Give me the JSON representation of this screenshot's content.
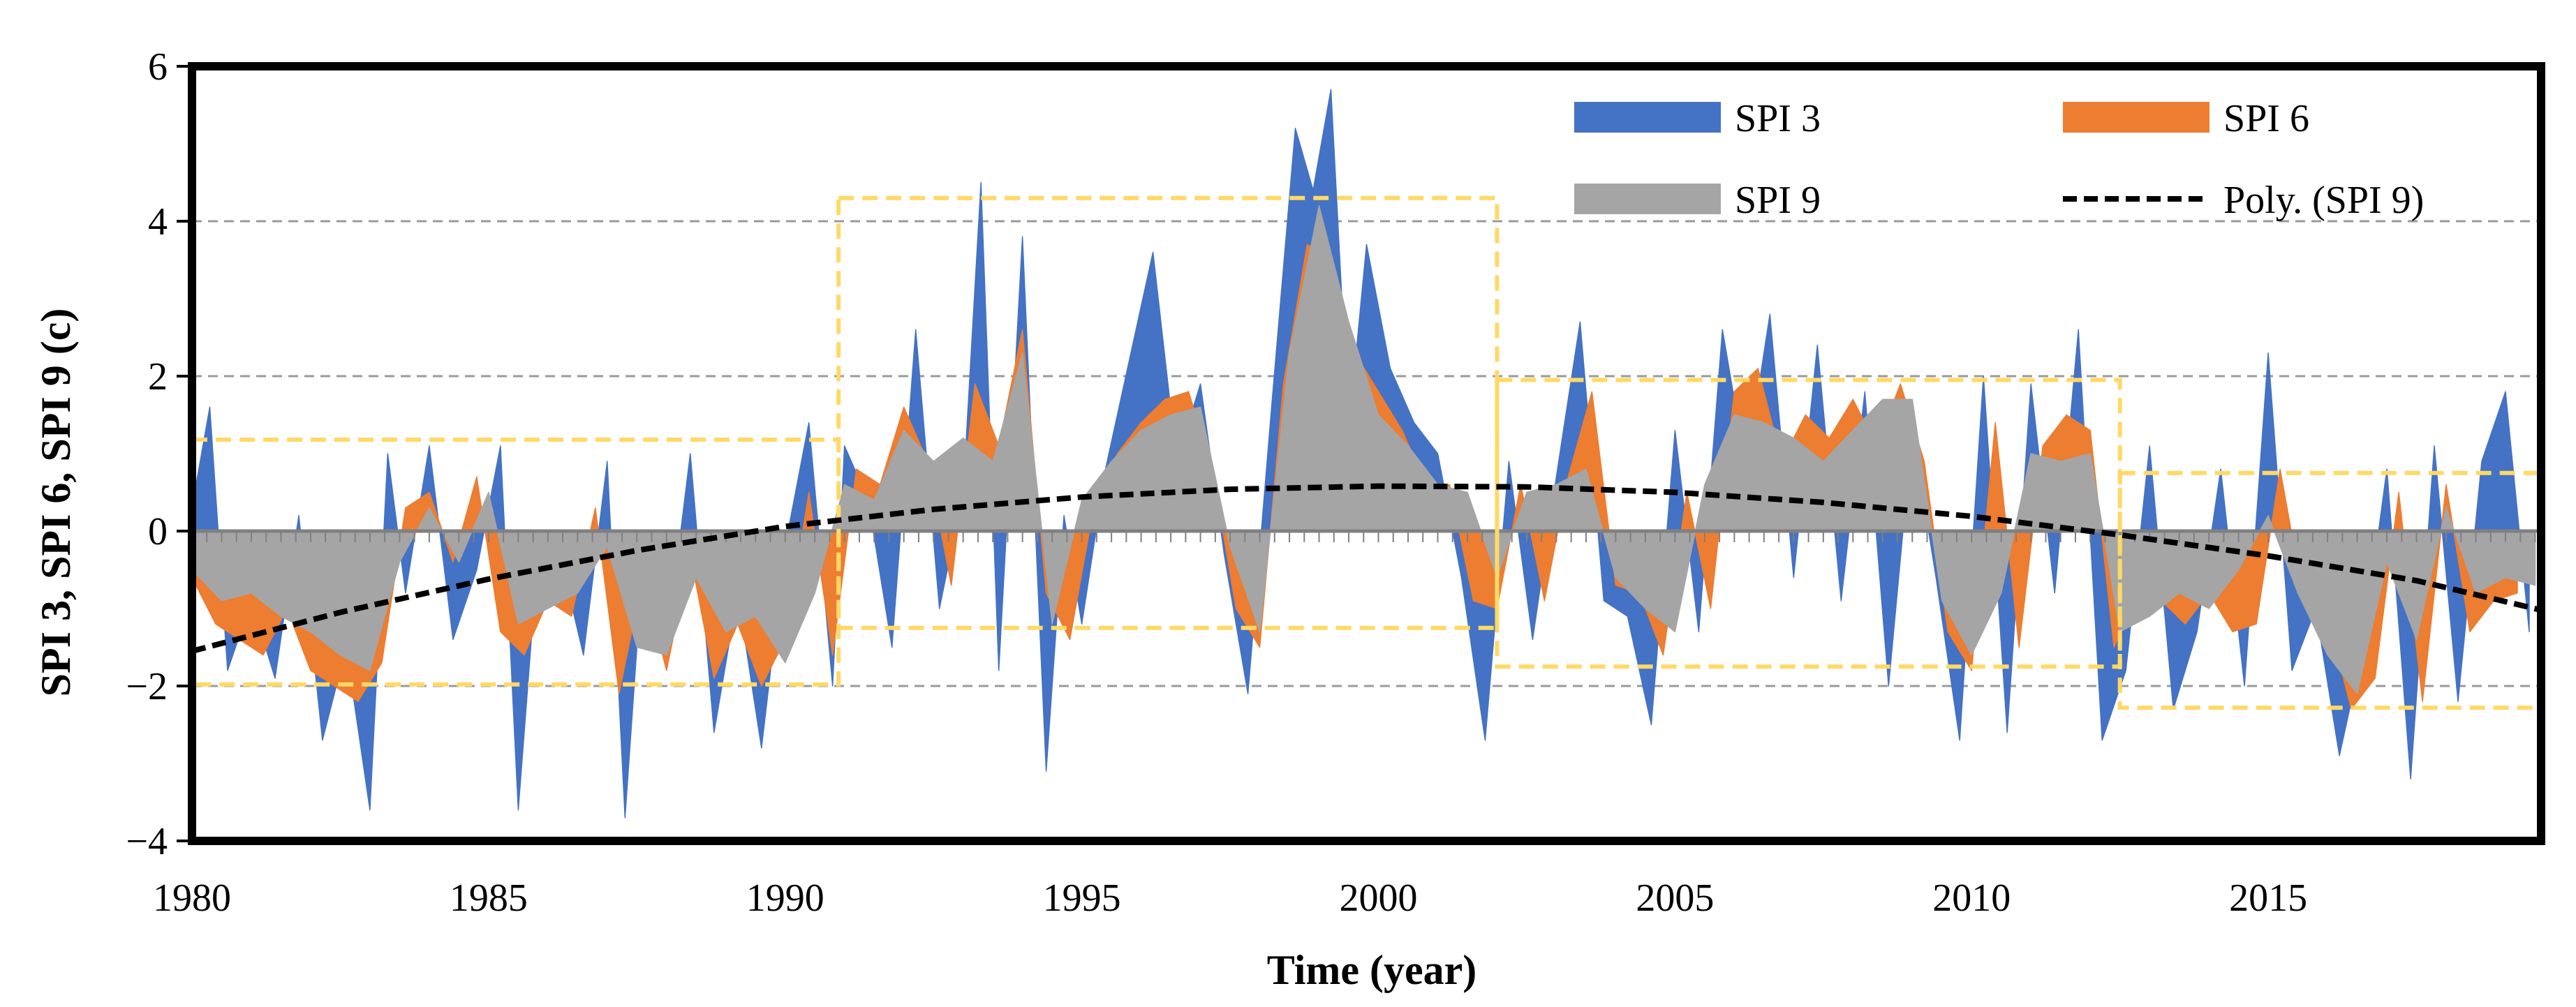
{
  "chart_data": {
    "type": "area",
    "title": "",
    "xlabel": "Time (year)",
    "ylabel": "SPI 3, SPI 6, SPI 9 (c)",
    "xlim": [
      1980,
      2019.6
    ],
    "ylim": [
      -4,
      6
    ],
    "x_ticks": [
      1980,
      1985,
      1990,
      1995,
      2000,
      2005,
      2010,
      2015
    ],
    "x_tick_labels": [
      "1980",
      "1985",
      "1990",
      "1995",
      "2000",
      "2005",
      "2010",
      "2015"
    ],
    "y_ticks": [
      -4,
      -2,
      0,
      2,
      4,
      6
    ],
    "y_tick_labels": [
      "−4",
      "−2",
      "0",
      "2",
      "4",
      "6"
    ],
    "gridlines_y": [
      -2,
      2,
      4
    ],
    "legend": {
      "position": "top-right",
      "entries": [
        {
          "label": "SPI 3",
          "color": "#4472C4",
          "kind": "area"
        },
        {
          "label": "SPI 6",
          "color": "#ED7D31",
          "kind": "area"
        },
        {
          "label": "SPI 9",
          "color": "#A5A5A5",
          "kind": "area"
        },
        {
          "label": "Poly. (SPI 9)",
          "color": "#000000",
          "kind": "dashed-line"
        }
      ]
    },
    "series": [
      {
        "name": "SPI 3",
        "color": "#4472C4",
        "x": [
          1980.0,
          1980.3,
          1980.6,
          1981.0,
          1981.4,
          1981.8,
          1982.2,
          1982.6,
          1983.0,
          1983.3,
          1983.6,
          1984.0,
          1984.4,
          1984.8,
          1985.2,
          1985.5,
          1985.8,
          1986.2,
          1986.6,
          1987.0,
          1987.3,
          1987.6,
          1988.0,
          1988.4,
          1988.8,
          1989.2,
          1989.6,
          1990.0,
          1990.4,
          1990.8,
          1991.0,
          1991.4,
          1991.8,
          1992.2,
          1992.6,
          1993.0,
          1993.3,
          1993.6,
          1994.0,
          1994.4,
          1994.7,
          1995.0,
          1995.4,
          1995.8,
          1996.2,
          1996.6,
          1997.0,
          1997.4,
          1997.8,
          1998.2,
          1998.6,
          1998.9,
          1999.2,
          1999.5,
          1999.8,
          2000.2,
          2000.6,
          2001.0,
          2001.4,
          2001.8,
          2002.2,
          2002.6,
          2003.0,
          2003.4,
          2003.8,
          2004.2,
          2004.6,
          2005.0,
          2005.4,
          2005.8,
          2006.2,
          2006.6,
          2007.0,
          2007.4,
          2007.8,
          2008.2,
          2008.6,
          2009.0,
          2009.4,
          2009.8,
          2010.2,
          2010.6,
          2011.0,
          2011.4,
          2011.8,
          2012.2,
          2012.6,
          2013.0,
          2013.4,
          2013.8,
          2014.2,
          2014.6,
          2015.0,
          2015.4,
          2015.8,
          2016.2,
          2016.6,
          2017.0,
          2017.4,
          2017.8,
          2018.2,
          2018.6,
          2019.0,
          2019.4
        ],
        "values": [
          0.3,
          1.6,
          -1.8,
          -0.9,
          -1.9,
          0.2,
          -2.7,
          -1.5,
          -3.6,
          1.0,
          -0.8,
          1.1,
          -1.4,
          -0.5,
          1.1,
          -3.6,
          -0.6,
          -0.3,
          -1.6,
          0.9,
          -3.7,
          -0.4,
          -1.5,
          1.0,
          -2.6,
          -0.8,
          -2.8,
          -0.2,
          1.4,
          -2.0,
          1.1,
          0.4,
          -1.5,
          2.6,
          -1.0,
          0.5,
          4.5,
          -1.8,
          3.8,
          -3.1,
          0.2,
          -1.2,
          0.8,
          2.2,
          3.6,
          0.9,
          1.9,
          -0.3,
          -2.1,
          1.6,
          5.2,
          4.4,
          5.7,
          1.3,
          3.7,
          2.1,
          1.4,
          1.0,
          -0.6,
          -2.7,
          0.9,
          -1.4,
          0.7,
          2.7,
          -0.9,
          -1.1,
          -2.5,
          1.3,
          -1.3,
          2.6,
          0.8,
          2.8,
          -0.6,
          2.4,
          -0.9,
          1.8,
          -2.0,
          1.3,
          -0.6,
          -2.7,
          2.0,
          -2.6,
          1.9,
          -0.8,
          2.6,
          -2.7,
          -1.8,
          1.1,
          -2.3,
          -1.3,
          0.8,
          -2.0,
          2.3,
          -1.8,
          -1.0,
          -2.9,
          -1.5,
          0.8,
          -3.2,
          1.1,
          -2.2,
          0.9,
          1.8,
          -1.3
        ]
      },
      {
        "name": "SPI 6",
        "color": "#ED7D31",
        "x": [
          1980.0,
          1980.4,
          1980.8,
          1981.2,
          1981.6,
          1982.0,
          1982.4,
          1982.8,
          1983.2,
          1983.6,
          1984.0,
          1984.4,
          1984.8,
          1985.2,
          1985.6,
          1986.0,
          1986.4,
          1986.8,
          1987.2,
          1987.6,
          1988.0,
          1988.4,
          1988.8,
          1989.2,
          1989.6,
          1990.0,
          1990.4,
          1990.8,
          1991.2,
          1991.6,
          1992.0,
          1992.4,
          1992.8,
          1993.2,
          1993.6,
          1994.0,
          1994.4,
          1994.8,
          1995.2,
          1995.6,
          1996.0,
          1996.4,
          1996.8,
          1997.2,
          1997.6,
          1998.0,
          1998.4,
          1998.8,
          1999.2,
          1999.6,
          2000.0,
          2000.4,
          2000.8,
          2001.2,
          2001.6,
          2002.0,
          2002.4,
          2002.8,
          2003.2,
          2003.6,
          2004.0,
          2004.4,
          2004.8,
          2005.2,
          2005.6,
          2006.0,
          2006.4,
          2006.8,
          2007.2,
          2007.6,
          2008.0,
          2008.4,
          2008.8,
          2009.2,
          2009.6,
          2010.0,
          2010.4,
          2010.8,
          2011.2,
          2011.6,
          2012.0,
          2012.4,
          2012.8,
          2013.2,
          2013.6,
          2014.0,
          2014.4,
          2014.8,
          2015.2,
          2015.6,
          2016.0,
          2016.4,
          2016.8,
          2017.2,
          2017.6,
          2018.0,
          2018.4,
          2018.8,
          2019.2
        ],
        "values": [
          -0.6,
          -1.2,
          -1.4,
          -1.6,
          -1.0,
          -1.8,
          -2.0,
          -2.2,
          -1.7,
          0.3,
          0.5,
          -0.4,
          0.7,
          -1.3,
          -1.6,
          -0.9,
          -1.1,
          0.3,
          -2.1,
          -0.6,
          -1.8,
          -0.3,
          -1.9,
          -1.2,
          -2.0,
          -1.4,
          0.5,
          -1.6,
          0.8,
          0.6,
          1.6,
          0.9,
          -0.7,
          1.9,
          1.1,
          2.6,
          -0.8,
          -1.4,
          0.3,
          1.0,
          1.4,
          1.7,
          1.8,
          0.8,
          -1.0,
          -1.5,
          1.9,
          3.7,
          3.5,
          2.3,
          1.8,
          1.3,
          0.6,
          0.6,
          -0.9,
          -1.0,
          0.6,
          -0.9,
          0.7,
          1.8,
          -0.7,
          -0.8,
          -1.6,
          0.5,
          -1.0,
          1.8,
          2.1,
          0.9,
          1.5,
          1.2,
          1.7,
          1.1,
          1.9,
          0.9,
          -1.3,
          -1.8,
          1.4,
          -1.5,
          1.1,
          1.5,
          1.3,
          -1.5,
          -0.8,
          -0.9,
          -1.2,
          -0.8,
          -1.3,
          -1.2,
          0.8,
          -0.9,
          -1.1,
          -2.3,
          -1.9,
          0.5,
          -2.2,
          0.6,
          -1.3,
          -0.9,
          -0.8
        ]
      },
      {
        "name": "SPI 9",
        "color": "#A5A5A5",
        "x": [
          1980.0,
          1980.5,
          1981.0,
          1981.5,
          1982.0,
          1982.5,
          1983.0,
          1983.5,
          1984.0,
          1984.5,
          1985.0,
          1985.5,
          1986.0,
          1986.5,
          1987.0,
          1987.5,
          1988.0,
          1988.5,
          1989.0,
          1989.5,
          1990.0,
          1990.5,
          1991.0,
          1991.5,
          1992.0,
          1992.5,
          1993.0,
          1993.5,
          1994.0,
          1994.5,
          1995.0,
          1995.5,
          1996.0,
          1996.5,
          1997.0,
          1997.5,
          1998.0,
          1998.5,
          1999.0,
          1999.5,
          2000.0,
          2000.5,
          2001.0,
          2001.5,
          2002.0,
          2002.5,
          2003.0,
          2003.5,
          2004.0,
          2004.5,
          2005.0,
          2005.5,
          2006.0,
          2006.5,
          2007.0,
          2007.5,
          2008.0,
          2008.5,
          2009.0,
          2009.5,
          2010.0,
          2010.5,
          2011.0,
          2011.5,
          2012.0,
          2012.5,
          2013.0,
          2013.5,
          2014.0,
          2014.5,
          2015.0,
          2015.5,
          2016.0,
          2016.5,
          2017.0,
          2017.5,
          2018.0,
          2018.5,
          2019.0,
          2019.5
        ],
        "values": [
          -0.5,
          -0.9,
          -0.8,
          -1.1,
          -1.3,
          -1.6,
          -1.8,
          -0.4,
          0.3,
          -0.4,
          0.5,
          -1.2,
          -1.0,
          -0.8,
          -0.2,
          -1.5,
          -1.6,
          -0.6,
          -1.3,
          -1.1,
          -1.7,
          -0.8,
          0.6,
          0.4,
          1.3,
          0.9,
          1.2,
          0.9,
          2.3,
          -1.2,
          0.4,
          0.9,
          1.3,
          1.5,
          1.6,
          -0.2,
          -1.3,
          2.3,
          4.2,
          2.7,
          1.5,
          1.1,
          0.6,
          0.5,
          -0.6,
          0.5,
          0.6,
          0.8,
          -0.6,
          -1.0,
          -1.3,
          0.6,
          1.5,
          1.4,
          1.2,
          0.9,
          1.3,
          1.7,
          1.7,
          -0.9,
          -1.6,
          -0.8,
          1.0,
          0.9,
          1.0,
          -1.3,
          -1.1,
          -0.8,
          -1.0,
          -0.5,
          0.2,
          -0.8,
          -1.6,
          -2.1,
          -0.4,
          -1.4,
          0.3,
          -0.8,
          -0.6,
          -0.7
        ]
      }
    ],
    "trendline": {
      "name": "Poly. (SPI 9)",
      "x": [
        1980.0,
        1982.5,
        1985.0,
        1987.5,
        1990.0,
        1992.5,
        1995.0,
        1997.5,
        2000.0,
        2002.5,
        2005.0,
        2007.5,
        2010.0,
        2012.5,
        2015.0,
        2017.5,
        2019.6
      ],
      "values": [
        -1.55,
        -1.05,
        -0.62,
        -0.25,
        0.06,
        0.28,
        0.44,
        0.54,
        0.58,
        0.57,
        0.5,
        0.37,
        0.19,
        -0.05,
        -0.32,
        -0.64,
        -1.02
      ]
    },
    "highlight_boxes": [
      {
        "x": [
          1980.0,
          1990.9
        ],
        "y": [
          -1.98,
          1.18
        ]
      },
      {
        "x": [
          1990.9,
          2002.0
        ],
        "y": [
          -1.25,
          4.3
        ]
      },
      {
        "x": [
          2002.0,
          2012.5
        ],
        "y": [
          -1.75,
          1.95
        ]
      },
      {
        "x": [
          2012.5,
          2019.6
        ],
        "y": [
          -2.28,
          0.75
        ]
      }
    ],
    "highlight_color": "#FFD966"
  }
}
